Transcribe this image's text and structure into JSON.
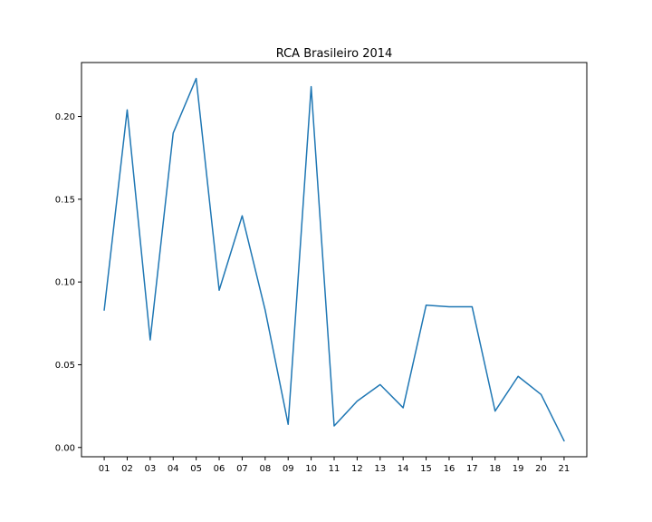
{
  "chart_data": {
    "type": "line",
    "title": "RCA Brasileiro 2014",
    "xlabel": "",
    "ylabel": "",
    "categories": [
      "01",
      "02",
      "03",
      "04",
      "05",
      "06",
      "07",
      "08",
      "09",
      "10",
      "11",
      "12",
      "13",
      "14",
      "15",
      "16",
      "17",
      "18",
      "19",
      "20",
      "21"
    ],
    "series": [
      {
        "values": [
          0.083,
          0.204,
          0.065,
          0.19,
          0.223,
          0.095,
          0.14,
          0.083,
          0.014,
          0.218,
          0.013,
          0.028,
          0.038,
          0.024,
          0.086,
          0.085,
          0.085,
          0.022,
          0.043,
          0.032,
          0.004
        ],
        "color": "#1f77b4"
      }
    ],
    "ylim": [
      -0.0056,
      0.2326
    ],
    "yticks": [
      0.0,
      0.05,
      0.1,
      0.15,
      0.2
    ],
    "ytick_labels": [
      "0.00",
      "0.05",
      "0.10",
      "0.15",
      "0.20"
    ],
    "grid": false,
    "legend": "none"
  }
}
